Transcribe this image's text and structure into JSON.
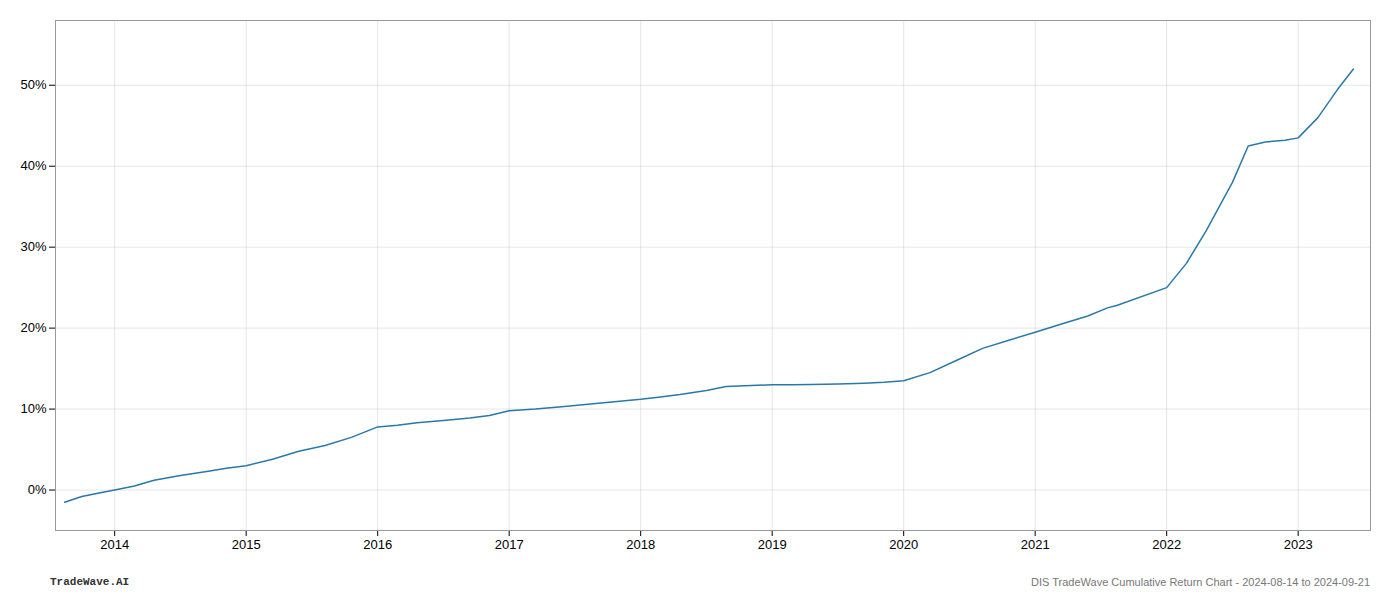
{
  "chart_data": {
    "type": "line",
    "annotations": [
      "TradeWave.AI",
      "DIS TradeWave Cumulative Return Chart - 2024-08-14 to 2024-09-21"
    ],
    "x": [
      2013.62,
      2013.75,
      2013.9,
      2014.0,
      2014.15,
      2014.3,
      2014.5,
      2014.7,
      2014.85,
      2015.0,
      2015.2,
      2015.4,
      2015.6,
      2015.8,
      2016.0,
      2016.15,
      2016.3,
      2016.5,
      2016.7,
      2016.85,
      2017.0,
      2017.2,
      2017.4,
      2017.6,
      2017.8,
      2018.0,
      2018.15,
      2018.3,
      2018.5,
      2018.65,
      2019.0,
      2019.15,
      2019.3,
      2019.5,
      2019.7,
      2019.85,
      2020.0,
      2020.2,
      2020.4,
      2020.6,
      2020.8,
      2021.0,
      2021.2,
      2021.4,
      2021.55,
      2021.62,
      2022.0,
      2022.15,
      2022.3,
      2022.5,
      2022.62,
      2022.75,
      2022.9,
      2023.0,
      2023.15,
      2023.3,
      2023.42
    ],
    "values": [
      -1.5,
      -0.8,
      -0.3,
      0.0,
      0.5,
      1.2,
      1.8,
      2.3,
      2.7,
      3.0,
      3.8,
      4.8,
      5.5,
      6.5,
      7.8,
      8.0,
      8.3,
      8.6,
      8.9,
      9.2,
      9.8,
      10.0,
      10.3,
      10.6,
      10.9,
      11.2,
      11.5,
      11.8,
      12.3,
      12.8,
      13.0,
      13.0,
      13.05,
      13.1,
      13.2,
      13.3,
      13.5,
      14.5,
      16.0,
      17.5,
      18.5,
      19.5,
      20.5,
      21.5,
      22.5,
      22.8,
      25.0,
      28.0,
      32.0,
      38.0,
      42.5,
      43.0,
      43.2,
      43.5,
      46.0,
      49.5,
      52.0
    ],
    "color": "#2979a8",
    "xlim": [
      2013.55,
      2023.55
    ],
    "xticks": [
      2014,
      2015,
      2016,
      2017,
      2018,
      2019,
      2020,
      2021,
      2022,
      2023
    ],
    "ylim": [
      -5,
      58
    ],
    "yticks": [
      {
        "value": 0,
        "label": "0%"
      },
      {
        "value": 10,
        "label": "10%"
      },
      {
        "value": 20,
        "label": "20%"
      },
      {
        "value": 30,
        "label": "30%"
      },
      {
        "value": 40,
        "label": "40%"
      },
      {
        "value": 50,
        "label": "50%"
      }
    ],
    "grid": true
  }
}
